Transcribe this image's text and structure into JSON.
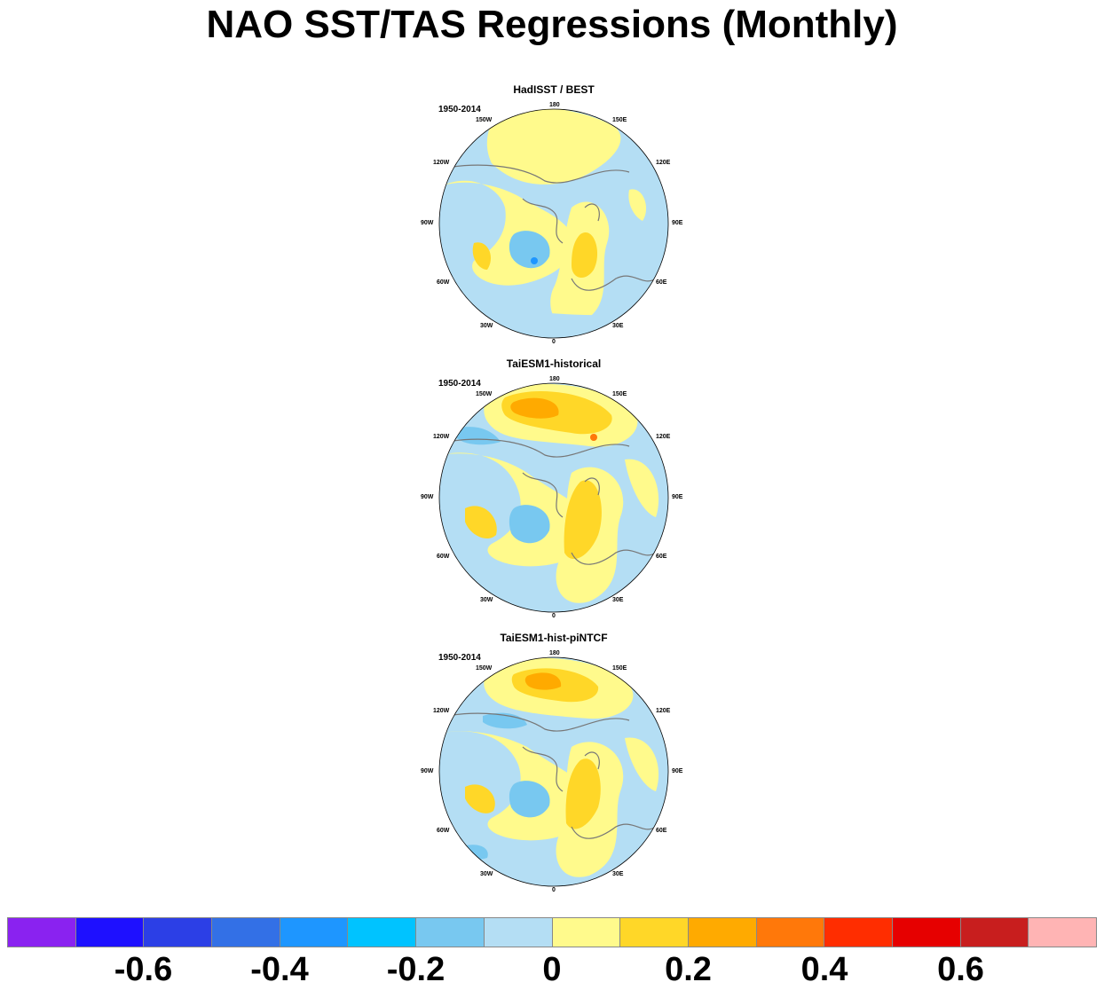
{
  "title": "NAO SST/TAS Regressions (Monthly)",
  "panels": [
    {
      "title": "HadISST / BEST",
      "period": "1950-2014"
    },
    {
      "title": "TaiESM1-historical",
      "period": "1950-2014"
    },
    {
      "title": "TaiESM1-hist-piNTCF",
      "period": "1950-2014"
    }
  ],
  "longitude_labels": [
    "180",
    "150E",
    "120E",
    "90E",
    "60E",
    "30E",
    "0",
    "30W",
    "60W",
    "90W",
    "120W",
    "150W"
  ],
  "colorbar": {
    "colors": [
      "#8a22f0",
      "#1e10ff",
      "#2c3fe6",
      "#3370e6",
      "#1e96ff",
      "#00c3ff",
      "#78c8f0",
      "#b4def4",
      "#fffa8c",
      "#ffd728",
      "#ffaa00",
      "#ff780a",
      "#ff2d00",
      "#e60000",
      "#c81e1e",
      "#ffb4b4"
    ],
    "tick_labels": [
      "-0.6",
      "-0.4",
      "-0.2",
      "0",
      "0.2",
      "0.4",
      "0.6"
    ]
  }
}
